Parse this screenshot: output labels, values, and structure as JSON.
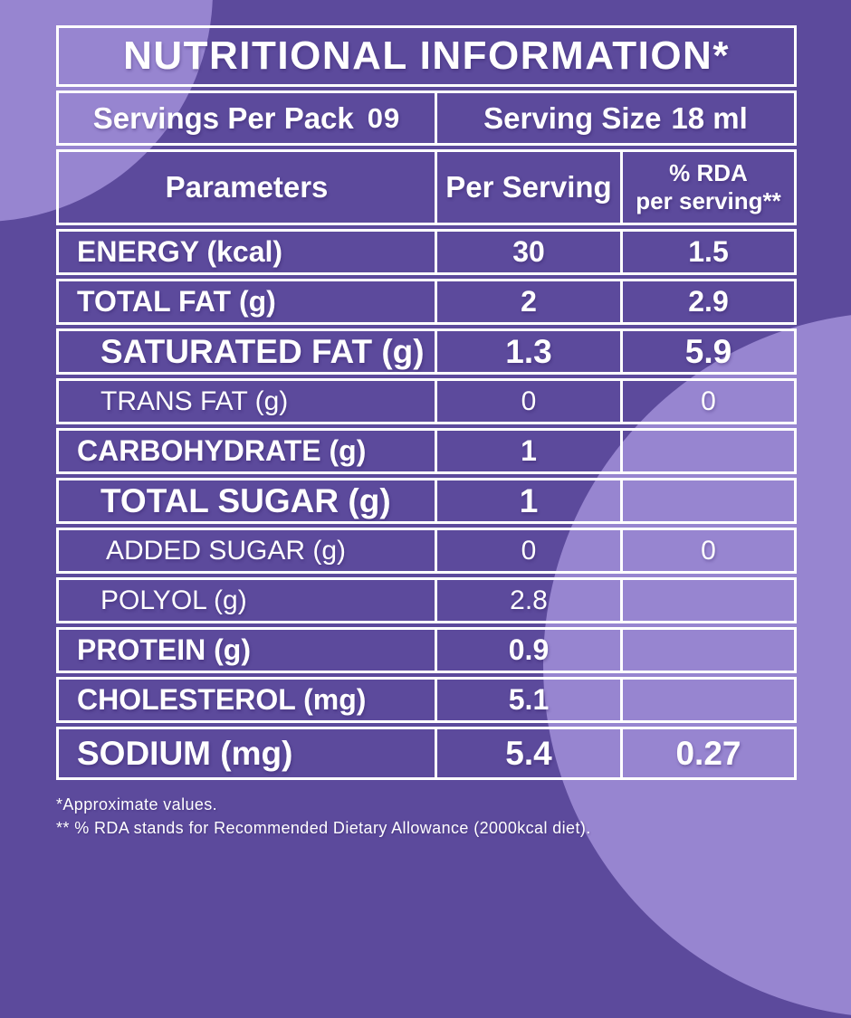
{
  "title": "NUTRITIONAL INFORMATION*",
  "serving_info": {
    "servings_label": "Servings Per Pack",
    "servings_value": "09",
    "size_label": "Serving Size",
    "size_value": "18 ml"
  },
  "columns": {
    "parameters": "Parameters",
    "per_serving": "Per Serving",
    "rda_line1": "% RDA",
    "rda_line2": "per serving**"
  },
  "rows": [
    {
      "label": "ENERGY (kcal)",
      "per_serving": "30",
      "rda": "1.5",
      "style": "bold",
      "indent": 0
    },
    {
      "label": "TOTAL FAT (g)",
      "per_serving": "2",
      "rda": "2.9",
      "style": "bold",
      "indent": 0
    },
    {
      "label": "SATURATED FAT (g)",
      "per_serving": "1.3",
      "rda": "5.9",
      "style": "bold-large",
      "indent": 1
    },
    {
      "label": "TRANS FAT (g)",
      "per_serving": "0",
      "rda": "0",
      "style": "light",
      "indent": 1
    },
    {
      "label": "CARBOHYDRATE (g)",
      "per_serving": "1",
      "rda": "",
      "style": "bold",
      "indent": 0
    },
    {
      "label": "TOTAL SUGAR (g)",
      "per_serving": "1",
      "rda": "",
      "style": "bold-large",
      "indent": 1
    },
    {
      "label": "ADDED SUGAR (g)",
      "per_serving": "0",
      "rda": "0",
      "style": "light",
      "indent": 2
    },
    {
      "label": "POLYOL (g)",
      "per_serving": "2.8",
      "rda": "",
      "style": "light",
      "indent": 1
    },
    {
      "label": "PROTEIN (g)",
      "per_serving": "0.9",
      "rda": "",
      "style": "bold",
      "indent": 0
    },
    {
      "label": "CHOLESTEROL (mg)",
      "per_serving": "5.1",
      "rda": "",
      "style": "bold",
      "indent": 0
    },
    {
      "label": "SODIUM (mg)",
      "per_serving": "5.4",
      "rda": "0.27",
      "style": "bold-large",
      "indent": 0
    }
  ],
  "footnotes": [
    "*Approximate values.",
    "** % RDA stands for Recommended Dietary Allowance (2000kcal diet)."
  ],
  "colors": {
    "background": "#5C4A9C",
    "circle": "#9785D0",
    "border": "#FFFFFF",
    "text": "#FFFFFF"
  }
}
